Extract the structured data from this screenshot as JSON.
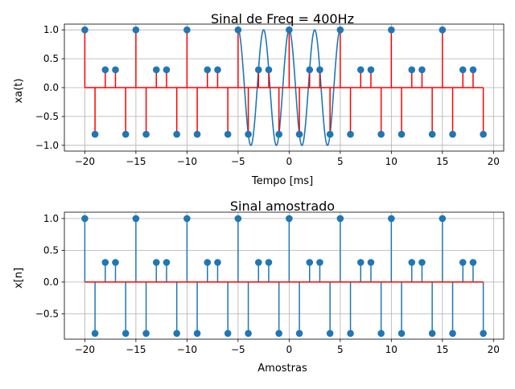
{
  "chart_data": [
    {
      "type": "stem",
      "title": "Sinal de Freq = 400Hz",
      "xlabel": "Tempo [ms]",
      "ylabel": "xa(t)",
      "xlim": [
        -22,
        21
      ],
      "ylim": [
        -1.1,
        1.1
      ],
      "xticks": [
        -20,
        -15,
        -10,
        -5,
        0,
        5,
        10,
        15,
        20
      ],
      "xtick_labels": [
        "−20",
        "−15",
        "−10",
        "−5",
        "0",
        "5",
        "10",
        "15",
        "20"
      ],
      "yticks": [
        -1.0,
        -0.5,
        0.0,
        0.5,
        1.0
      ],
      "ytick_labels": [
        "−1.0",
        "−0.5",
        "0.0",
        "0.5",
        "1.0"
      ],
      "grid": true,
      "stem_color": "#ff0000",
      "marker_color": "#1f77b4",
      "baseline_color": "#ff0000",
      "x": [
        -20,
        -19,
        -18,
        -17,
        -16,
        -15,
        -14,
        -13,
        -12,
        -11,
        -10,
        -9,
        -8,
        -7,
        -6,
        -5,
        -4,
        -3,
        -2,
        -1,
        0,
        1,
        2,
        3,
        4,
        5,
        6,
        7,
        8,
        9,
        10,
        11,
        12,
        13,
        14,
        15,
        16,
        17,
        18,
        19
      ],
      "values": [
        1.0,
        -0.809,
        0.309,
        0.309,
        -0.809,
        1.0,
        -0.809,
        0.309,
        0.309,
        -0.809,
        1.0,
        -0.809,
        0.309,
        0.309,
        -0.809,
        1.0,
        -0.809,
        0.309,
        0.309,
        -0.809,
        1.0,
        -0.809,
        0.309,
        0.309,
        -0.809,
        1.0,
        -0.809,
        0.309,
        0.309,
        -0.809,
        1.0,
        -0.809,
        0.309,
        0.309,
        -0.809,
        1.0,
        -0.809,
        0.309,
        0.309,
        -0.809
      ],
      "continuous": {
        "function": "cos(2*pi*0.4*t)",
        "t_range": [
          -5,
          5
        ],
        "color": "#1f77b4"
      }
    },
    {
      "type": "stem",
      "title": "Sinal amostrado",
      "xlabel": "Amostras",
      "ylabel": "x[n]",
      "xlim": [
        -22,
        21
      ],
      "ylim": [
        -0.9,
        1.1
      ],
      "xticks": [
        -20,
        -15,
        -10,
        -5,
        0,
        5,
        10,
        15,
        20
      ],
      "xtick_labels": [
        "−20",
        "−15",
        "−10",
        "−5",
        "0",
        "5",
        "10",
        "15",
        "20"
      ],
      "yticks": [
        -0.5,
        0.0,
        0.5,
        1.0
      ],
      "ytick_labels": [
        "−0.5",
        "0.0",
        "0.5",
        "1.0"
      ],
      "grid": true,
      "stem_color": "#1f77b4",
      "marker_color": "#1f77b4",
      "baseline_color": "#ff0000",
      "x": [
        -20,
        -19,
        -18,
        -17,
        -16,
        -15,
        -14,
        -13,
        -12,
        -11,
        -10,
        -9,
        -8,
        -7,
        -6,
        -5,
        -4,
        -3,
        -2,
        -1,
        0,
        1,
        2,
        3,
        4,
        5,
        6,
        7,
        8,
        9,
        10,
        11,
        12,
        13,
        14,
        15,
        16,
        17,
        18,
        19
      ],
      "values": [
        1.0,
        -0.809,
        0.309,
        0.309,
        -0.809,
        1.0,
        -0.809,
        0.309,
        0.309,
        -0.809,
        1.0,
        -0.809,
        0.309,
        0.309,
        -0.809,
        1.0,
        -0.809,
        0.309,
        0.309,
        -0.809,
        1.0,
        -0.809,
        0.309,
        0.309,
        -0.809,
        1.0,
        -0.809,
        0.309,
        0.309,
        -0.809,
        1.0,
        -0.809,
        0.309,
        0.309,
        -0.809,
        1.0,
        -0.809,
        0.309,
        0.309,
        -0.809
      ]
    }
  ]
}
